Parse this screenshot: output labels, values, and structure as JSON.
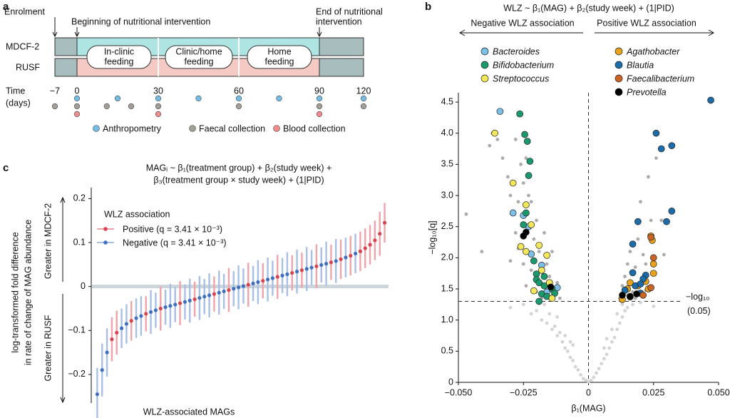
{
  "panel_labels": [
    "a",
    "b",
    "c"
  ],
  "timeline": {
    "events": {
      "enrolment": "Enrolment",
      "start": "Beginning of nutritional intervention",
      "end": [
        "End of nutritional",
        "intervention"
      ]
    },
    "arms": [
      "MDCF-2",
      "RUSF"
    ],
    "phases": [
      [
        "In-clinic",
        "feeding"
      ],
      [
        "Clinic/home",
        "feeding"
      ],
      [
        "Home",
        "feeding"
      ]
    ],
    "time_label": [
      "Time",
      "(days)"
    ],
    "xticks": [
      {
        "value": -7,
        "label": "−7"
      },
      0,
      30,
      60,
      90,
      120
    ],
    "collections": [
      {
        "name": "Anthropometry",
        "color": "#74bde6",
        "days": [
          0,
          15,
          30,
          45,
          60,
          75,
          90,
          120
        ]
      },
      {
        "name": "Faecal collection",
        "color": "#a59e96",
        "days": [
          -7,
          0,
          11,
          20,
          30,
          60,
          90,
          120
        ]
      },
      {
        "name": "Blood collection",
        "color": "#f08c8c",
        "days": [
          0,
          30,
          90
        ]
      }
    ]
  },
  "chart_data": [
    {
      "type": "scatter",
      "title": "WLZ ~ β₁(MAG) + β₂(study week) + (1|PID)",
      "direction_labels": [
        "Negative WLZ association",
        "Positive WLZ association"
      ],
      "xlabel": "β₁(MAG)",
      "ylabel": "−log₁₀[q]",
      "threshold": 1.3,
      "threshold_label": [
        "−log₁₀",
        "(0.05)"
      ],
      "xlim": [
        -0.05,
        0.05
      ],
      "xticks": [
        {
          "value": -0.05,
          "label": "−0.050"
        },
        {
          "value": -0.025,
          "label": "−0.025"
        },
        0,
        {
          "value": 0.025,
          "label": "0.025"
        },
        {
          "value": 0.05,
          "label": "0.050"
        }
      ],
      "ylim": [
        0,
        4.65
      ],
      "yticks": [
        0,
        0.5,
        {
          "value": 1,
          "label": "1.0"
        },
        1.5,
        {
          "value": 2,
          "label": "2.0"
        },
        2.5,
        {
          "value": 3,
          "label": "3.0"
        },
        3.5,
        {
          "value": 4,
          "label": "4.0"
        },
        4.5
      ],
      "series": [
        {
          "color": "#d4d4d4",
          "x": [
            -0.03,
            -0.025,
            -0.022,
            -0.02,
            -0.018,
            -0.016,
            -0.015,
            -0.014,
            -0.013,
            -0.012,
            -0.011,
            -0.01,
            -0.009,
            -0.008,
            -0.007,
            -0.006,
            -0.005,
            -0.004,
            -0.003,
            -0.002,
            -0.001,
            0,
            0.001,
            0.002,
            0.003,
            0.004,
            0.005,
            0.006,
            0.007,
            0.008,
            0.009,
            0.01,
            0.011,
            0.012,
            0.013,
            0.014,
            0.015,
            0.017,
            0.02,
            0.025,
            -0.009,
            -0.012,
            0.009,
            0.011,
            -0.006,
            0.006,
            -0.017,
            0.013,
            -0.007,
            0.007
          ],
          "values": [
            1.2,
            1.25,
            1.1,
            1.15,
            1.0,
            0.95,
            1.1,
            0.85,
            0.9,
            0.75,
            0.8,
            0.65,
            0.55,
            0.5,
            0.4,
            0.35,
            0.25,
            0.2,
            0.12,
            0.06,
            0.03,
            0.01,
            0.03,
            0.08,
            0.15,
            0.22,
            0.3,
            0.38,
            0.45,
            0.55,
            0.65,
            0.72,
            0.85,
            0.95,
            1.05,
            1.15,
            1.2,
            1.25,
            1.28,
            1.22,
            0.75,
            1.05,
            0.85,
            1.1,
            0.6,
            0.55,
            1.25,
            1.25,
            0.65,
            0.7
          ]
        },
        {
          "color": "#ababab",
          "x": [
            -0.047,
            -0.041,
            -0.038,
            -0.037,
            -0.035,
            -0.033,
            -0.031,
            -0.03,
            -0.028,
            -0.027,
            -0.026,
            -0.025,
            -0.024,
            -0.023,
            -0.022,
            -0.021,
            -0.02,
            -0.019,
            -0.018,
            -0.017,
            -0.016,
            -0.015,
            -0.014,
            -0.013,
            -0.012,
            -0.022,
            -0.025,
            -0.028,
            -0.03,
            -0.027,
            -0.02,
            -0.018,
            -0.024,
            -0.011,
            0.012,
            0.013,
            0.014,
            0.015,
            0.016,
            0.017,
            0.018,
            0.019,
            0.02,
            0.021,
            0.022,
            0.023,
            0.024,
            0.026,
            0.018,
            0.015,
            0.029,
            0.03,
            0.028,
            0.022
          ],
          "values": [
            2.7,
            2.1,
            3.8,
            4.0,
            3.9,
            3.6,
            3.3,
            3.0,
            3.9,
            2.9,
            3.5,
            3.2,
            3.6,
            3.0,
            2.9,
            2.3,
            2.6,
            2.1,
            1.8,
            2.4,
            1.9,
            1.7,
            2.1,
            1.5,
            1.6,
            1.8,
            1.9,
            2.4,
            1.95,
            2.15,
            1.45,
            1.35,
            1.55,
            1.35,
            1.35,
            1.55,
            1.7,
            1.9,
            2.1,
            1.45,
            1.85,
            2.3,
            2.9,
            2.05,
            1.9,
            3.3,
            2.6,
            3.6,
            1.35,
            1.4,
            2.05,
            2.6,
            2.6,
            1.48
          ]
        },
        {
          "name": "Bacteroides",
          "color": "#7cc0e8",
          "x": [
            -0.034,
            -0.029,
            -0.025,
            -0.023,
            -0.018,
            -0.016,
            -0.022,
            -0.012
          ],
          "values": [
            4.35,
            2.72,
            2.68,
            2.5,
            1.88,
            1.45,
            2.06,
            1.52
          ]
        },
        {
          "name": "Bifidobacterium",
          "color": "#1a9a6c",
          "x": [
            -0.0264,
            -0.0245,
            -0.0235,
            -0.0225,
            -0.023,
            -0.024,
            -0.025,
            -0.021,
            -0.02,
            -0.02,
            -0.019,
            -0.017,
            -0.018,
            -0.016,
            -0.019,
            -0.014,
            -0.017,
            -0.013,
            -0.015
          ],
          "values": [
            4.31,
            3.98,
            3.87,
            3.55,
            3.32,
            2.72,
            2.53,
            1.95,
            1.74,
            1.65,
            1.6,
            1.55,
            1.42,
            1.38,
            1.3,
            1.5,
            1.7,
            1.43,
            1.6
          ]
        },
        {
          "name": "Streptococcus",
          "color": "#f2e65a",
          "x": [
            -0.036,
            -0.029,
            -0.024,
            -0.022,
            -0.026,
            -0.024,
            -0.018,
            -0.015,
            -0.021,
            -0.014,
            -0.016,
            -0.019
          ],
          "values": [
            4.0,
            3.2,
            2.85,
            2.53,
            2.18,
            2.1,
            1.8,
            1.6,
            1.47,
            1.35,
            2.04,
            2.2
          ]
        },
        {
          "name": "Agathobacter",
          "color": "#e8a21c",
          "x": [
            0.024,
            0.0245,
            0.025,
            0.025,
            0.022,
            0.016,
            0.015,
            0.016,
            0.023,
            0.013,
            0.02,
            0.019
          ],
          "values": [
            2.35,
            2.28,
            1.9,
            1.75,
            1.62,
            1.6,
            1.5,
            1.37,
            1.5,
            1.33,
            1.43,
            1.55
          ]
        },
        {
          "name": "Blautia",
          "color": "#1b6ca8",
          "x": [
            0.047,
            0.026,
            0.028,
            0.032,
            0.032,
            0.03,
            0.019,
            0.017,
            0.017,
            0.022,
            0.021,
            0.018,
            0.014,
            0.02,
            0.02
          ],
          "values": [
            4.53,
            4.0,
            3.75,
            3.8,
            2.75,
            2.58,
            2.58,
            2.22,
            1.76,
            1.72,
            1.66,
            1.55,
            1.48,
            1.43,
            1.58
          ]
        },
        {
          "name": "Faecalibacterium",
          "color": "#cc6424",
          "x": [
            0.024,
            0.025,
            0.024,
            0.021
          ],
          "values": [
            2.33,
            2.0,
            1.52,
            1.4
          ]
        },
        {
          "name": "Prevotella",
          "color": "#000000",
          "x": [
            -0.024,
            -0.025,
            -0.0145,
            0.016,
            0.0185,
            0.013
          ],
          "values": [
            2.41,
            2.35,
            1.53,
            1.38,
            1.42,
            1.4
          ]
        }
      ]
    },
    {
      "type": "dot",
      "title": [
        "MAGᵢ ~ β₁(treatment group) + β₂(study week) +",
        "β₃(treatment group × study week) + (1|PID)"
      ],
      "ylabel": [
        "log-transformed fold difference",
        "in rate of change of MAG abundance"
      ],
      "xlabel": "WLZ-associated MAGs",
      "side_labels": [
        "Greater in MDCF-2",
        "Greater in RUSF"
      ],
      "legend_title": "WLZ association",
      "ylim": [
        -0.265,
        0.225
      ],
      "yticks": [
        {
          "value": -0.2,
          "label": "−0.2"
        },
        {
          "value": -0.1,
          "label": "−0.1"
        },
        0,
        0.1,
        0.2
      ],
      "categories": [
        null,
        null,
        null,
        null,
        null,
        null,
        null,
        null,
        null,
        null,
        null,
        null,
        null,
        null,
        null,
        null,
        null,
        null,
        null,
        null,
        null,
        null,
        null,
        null,
        null,
        null,
        null,
        null,
        null,
        null,
        null,
        null,
        null,
        null,
        null,
        null,
        null,
        null,
        null,
        null,
        null,
        null,
        null,
        null,
        null,
        null,
        null,
        null,
        null,
        null,
        null,
        null,
        null,
        null,
        null,
        null,
        null,
        null,
        null,
        null
      ],
      "series": [
        {
          "name": "Positive (q = 3.41 × 10⁻³)",
          "color": "#d9434f",
          "error_color": "#f0a3aa",
          "values": [
            null,
            null,
            null,
            -0.12,
            -0.105,
            null,
            null,
            -0.078,
            null,
            null,
            -0.062,
            null,
            null,
            -0.05,
            null,
            null,
            null,
            -0.038,
            null,
            null,
            -0.029,
            null,
            null,
            null,
            -0.017,
            null,
            null,
            -0.008,
            null,
            null,
            null,
            0.004,
            null,
            null,
            0.013,
            null,
            null,
            0.022,
            null,
            null,
            0.031,
            null,
            0.037,
            null,
            null,
            0.046,
            null,
            null,
            0.055,
            null,
            0.062,
            null,
            0.07,
            null,
            0.08,
            0.087,
            0.095,
            0.105,
            0.12,
            0.145
          ],
          "errors": [
            null,
            null,
            null,
            0.05,
            0.05,
            null,
            null,
            0.045,
            null,
            null,
            0.04,
            null,
            null,
            0.05,
            null,
            null,
            null,
            0.05,
            null,
            null,
            0.04,
            null,
            null,
            null,
            0.04,
            null,
            null,
            0.05,
            null,
            null,
            null,
            0.05,
            null,
            null,
            0.04,
            null,
            null,
            0.05,
            null,
            null,
            0.04,
            null,
            0.04,
            null,
            null,
            0.05,
            null,
            null,
            0.04,
            null,
            0.045,
            null,
            0.045,
            null,
            0.045,
            0.045,
            0.045,
            0.045,
            0.05,
            0.045
          ]
        },
        {
          "name": "Negative (q = 3.41 × 10⁻³)",
          "color": "#3f6fc0",
          "error_color": "#a8c0e6",
          "values": [
            -0.245,
            -0.19,
            -0.15,
            null,
            null,
            -0.095,
            -0.085,
            null,
            -0.072,
            -0.067,
            null,
            -0.058,
            -0.054,
            null,
            -0.047,
            -0.044,
            -0.041,
            null,
            -0.035,
            -0.032,
            null,
            -0.026,
            -0.023,
            -0.02,
            null,
            -0.014,
            -0.011,
            null,
            -0.005,
            -0.002,
            0.001,
            null,
            0.007,
            0.01,
            null,
            0.016,
            0.019,
            null,
            0.025,
            0.028,
            null,
            0.034,
            null,
            0.04,
            0.043,
            null,
            0.049,
            0.052,
            null,
            0.058,
            null,
            0.066,
            null,
            0.075,
            null,
            null,
            null,
            null,
            null,
            null
          ],
          "errors": [
            0.06,
            0.06,
            0.055,
            null,
            null,
            0.045,
            0.045,
            null,
            0.045,
            0.045,
            null,
            0.05,
            0.04,
            null,
            0.04,
            0.05,
            0.04,
            null,
            0.04,
            0.05,
            null,
            0.05,
            0.04,
            0.05,
            null,
            0.05,
            0.04,
            null,
            0.04,
            0.05,
            0.04,
            null,
            0.04,
            0.05,
            null,
            0.05,
            0.04,
            null,
            0.04,
            0.05,
            null,
            0.05,
            null,
            0.05,
            0.04,
            null,
            0.04,
            0.05,
            null,
            0.05,
            null,
            0.045,
            null,
            0.045,
            null,
            null,
            null,
            null,
            null,
            null
          ]
        }
      ]
    }
  ]
}
